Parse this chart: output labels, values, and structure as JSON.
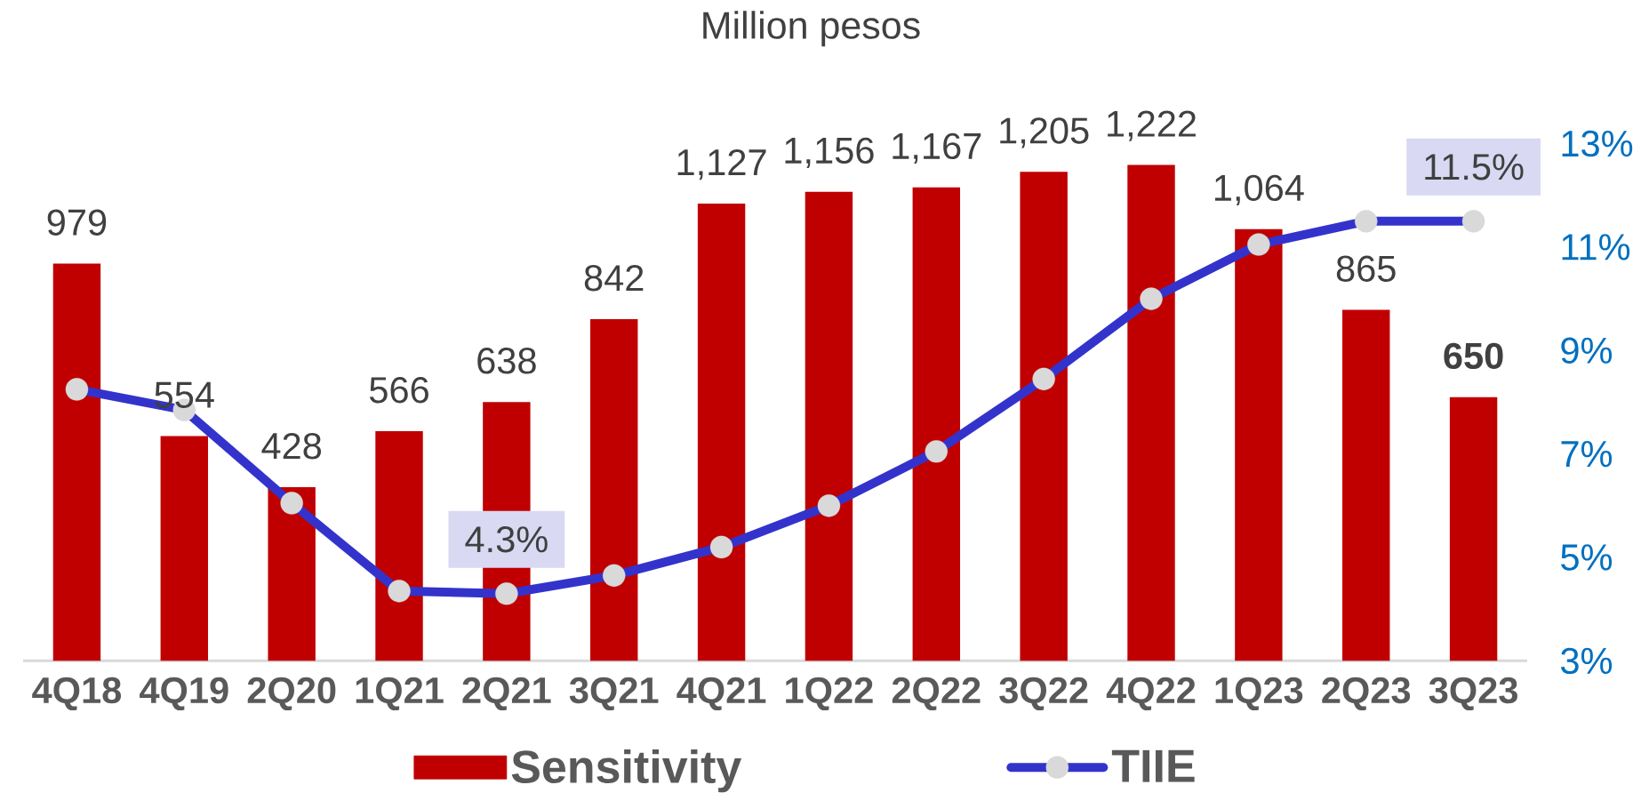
{
  "chart_data": {
    "type": "bar",
    "title": "Million pesos",
    "categories": [
      "4Q18",
      "4Q19",
      "2Q20",
      "1Q21",
      "2Q21",
      "3Q21",
      "4Q21",
      "1Q22",
      "2Q22",
      "3Q22",
      "4Q22",
      "1Q23",
      "2Q23",
      "3Q23"
    ],
    "series": [
      {
        "name": "Sensitivity",
        "color": "#c00000",
        "values": [
          979,
          554,
          428,
          566,
          638,
          842,
          1127,
          1156,
          1167,
          1205,
          1222,
          1064,
          865,
          650
        ],
        "value_labels": [
          "979",
          "554",
          "428",
          "566",
          "638",
          "842",
          "1,127",
          "1,156",
          "1,167",
          "1,205",
          "1,222",
          "1,064",
          "865",
          "**650**"
        ]
      },
      {
        "name": "TIIE",
        "type": "line",
        "axis": "y2",
        "color": "#3333cc",
        "marker": "circle",
        "values": [
          8.25,
          7.85,
          6.05,
          4.35,
          4.3,
          4.65,
          5.2,
          6.0,
          7.05,
          8.45,
          10.0,
          11.05,
          11.5,
          11.5
        ],
        "value_labels": [
          null,
          null,
          null,
          null,
          "4.3%",
          null,
          null,
          null,
          null,
          null,
          null,
          null,
          null,
          "11.5%"
        ]
      }
    ],
    "y2lim": [
      3,
      13
    ],
    "y2ticks": [
      {
        "value": 3,
        "label": "3%"
      },
      {
        "value": 5,
        "label": "5%"
      },
      {
        "value": 7,
        "label": "7%"
      },
      {
        "value": 9,
        "label": "9%"
      },
      {
        "value": 11,
        "label": "11%"
      },
      {
        "value": 13,
        "label": "13%"
      }
    ],
    "legend": "bottom"
  }
}
